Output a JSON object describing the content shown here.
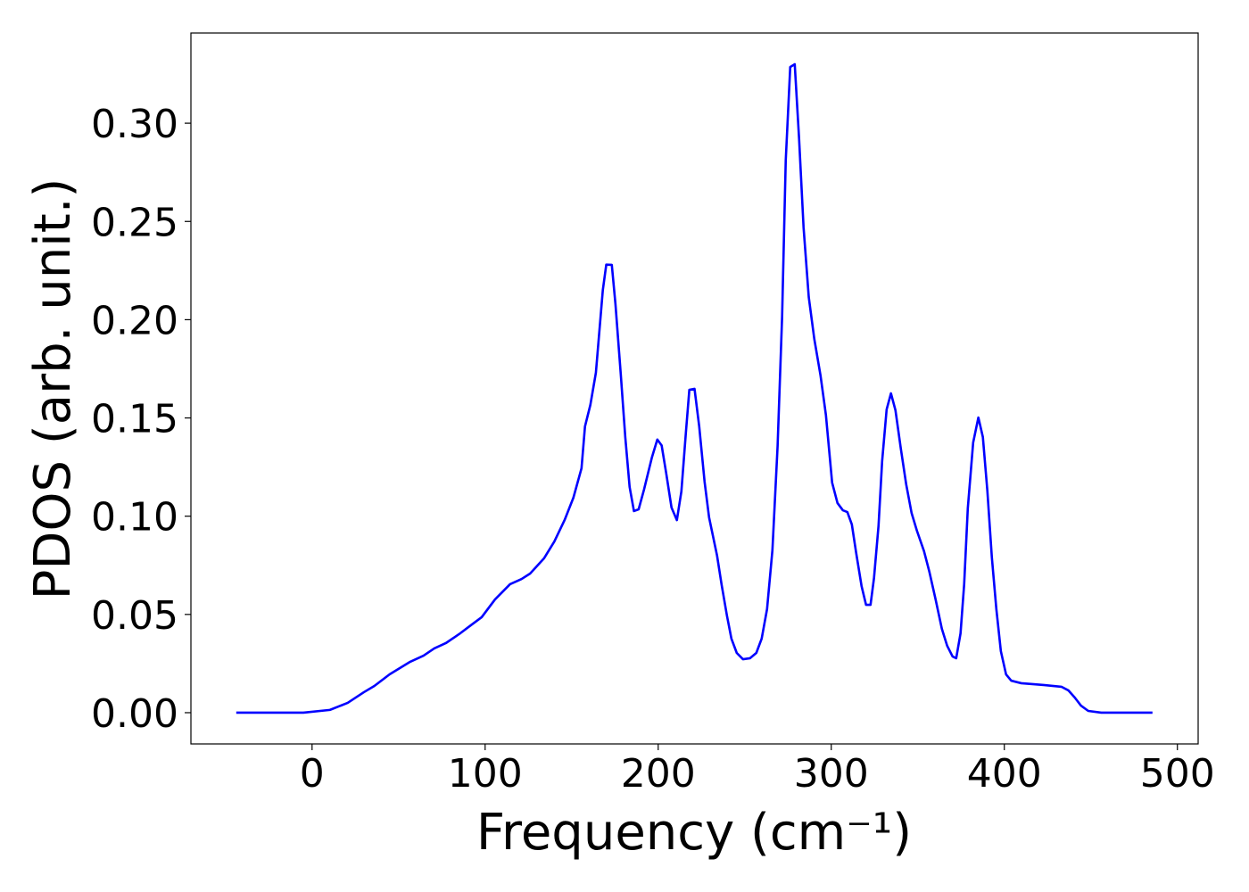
{
  "chart_data": {
    "type": "line",
    "xlabel": "Frequency (cm⁻¹)",
    "ylabel": "PDOS (arb. unit.)",
    "x": [
      -43.8,
      -5,
      10.3,
      20.6,
      29.9,
      36,
      44.8,
      56.7,
      64.4,
      70.6,
      77.3,
      85,
      91,
      98,
      105.7,
      114.4,
      121,
      126,
      134,
      140,
      145.9,
      151,
      155.7,
      157.7,
      160.8,
      164,
      168,
      170,
      173.2,
      175.3,
      178.4,
      181,
      183.5,
      186,
      188.7,
      191.8,
      196.4,
      199.5,
      202,
      204.6,
      207.7,
      210.8,
      213.4,
      216,
      218,
      221,
      223.7,
      226.8,
      229.4,
      234,
      236.6,
      239.7,
      242.3,
      245.4,
      249,
      253,
      256.7,
      259.8,
      262.9,
      266,
      269,
      271.6,
      273.7,
      276.3,
      278.9,
      281.4,
      284,
      287,
      290.2,
      293.8,
      296.9,
      300.5,
      303.6,
      306.7,
      309.3,
      311.9,
      314.4,
      317.5,
      320.1,
      322.7,
      324.7,
      327.3,
      329.4,
      332,
      334.5,
      337.1,
      340.2,
      343.3,
      346.4,
      349.5,
      353.6,
      356.7,
      360.3,
      363.9,
      367,
      370.1,
      372.2,
      374.7,
      376.8,
      378.9,
      382,
      385,
      387.6,
      390.2,
      392.8,
      395.4,
      398,
      401,
      404,
      409.8,
      422.7,
      433,
      437.1,
      440.7,
      444.3,
      448.5,
      456,
      485.6
    ],
    "series": [
      {
        "name": "PDOS",
        "color": "#0000ff",
        "values": [
          0,
          0,
          0.0014,
          0.005,
          0.0104,
          0.0136,
          0.0195,
          0.0259,
          0.029,
          0.0327,
          0.0354,
          0.04,
          0.044,
          0.0486,
          0.0576,
          0.0654,
          0.068,
          0.0708,
          0.0785,
          0.0871,
          0.098,
          0.1094,
          0.1244,
          0.1457,
          0.1566,
          0.173,
          0.215,
          0.228,
          0.2279,
          0.208,
          0.172,
          0.14,
          0.1148,
          0.1026,
          0.1035,
          0.1135,
          0.13,
          0.139,
          0.136,
          0.122,
          0.1044,
          0.098,
          0.1126,
          0.1425,
          0.1643,
          0.1648,
          0.1457,
          0.1176,
          0.0994,
          0.08,
          0.0654,
          0.0495,
          0.0377,
          0.0304,
          0.0272,
          0.0277,
          0.0304,
          0.0377,
          0.0527,
          0.0826,
          0.1357,
          0.2015,
          0.281,
          0.3286,
          0.33,
          0.2923,
          0.247,
          0.2115,
          0.1902,
          0.1716,
          0.1516,
          0.1171,
          0.1067,
          0.103,
          0.1021,
          0.0958,
          0.0813,
          0.0645,
          0.0549,
          0.0549,
          0.0685,
          0.0949,
          0.128,
          0.1543,
          0.1625,
          0.1539,
          0.1344,
          0.1162,
          0.1017,
          0.0926,
          0.0822,
          0.0717,
          0.0576,
          0.0427,
          0.034,
          0.0286,
          0.0277,
          0.0404,
          0.0654,
          0.104,
          0.1375,
          0.1502,
          0.1403,
          0.113,
          0.079,
          0.0527,
          0.0313,
          0.0195,
          0.0163,
          0.015,
          0.0141,
          0.0132,
          0.0113,
          0.0077,
          0.0036,
          0.0009,
          0,
          0
        ]
      }
    ],
    "xlim": [
      -70,
      512
    ],
    "ylim": [
      -0.0159,
      0.3459
    ],
    "xticks": [
      0,
      100,
      200,
      300,
      400,
      500
    ],
    "yticks": [
      {
        "value": 0,
        "label": "0.00"
      },
      0.05,
      {
        "value": 0.1,
        "label": "0.10"
      },
      0.15,
      {
        "value": 0.2,
        "label": "0.20"
      },
      0.25,
      {
        "value": 0.3,
        "label": "0.30"
      }
    ]
  }
}
